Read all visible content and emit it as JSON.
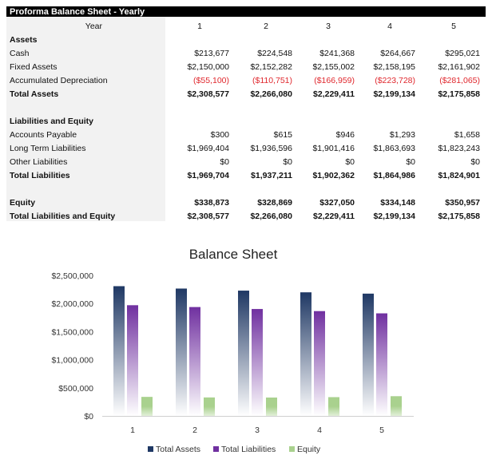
{
  "sheet": {
    "title": "Proforma Balance Sheet - Yearly",
    "year_label": "Year",
    "years": [
      "1",
      "2",
      "3",
      "4",
      "5"
    ],
    "rows": [
      {
        "label": "Assets",
        "bold": true,
        "values": []
      },
      {
        "label": "Cash",
        "values": [
          "$213,677",
          "$224,548",
          "$241,368",
          "$264,667",
          "$295,021"
        ]
      },
      {
        "label": "Fixed Assets",
        "values": [
          "$2,150,000",
          "$2,152,282",
          "$2,155,002",
          "$2,158,195",
          "$2,161,902"
        ]
      },
      {
        "label": "Accumulated Depreciation",
        "negative": true,
        "values": [
          "($55,100)",
          "($110,751)",
          "($166,959)",
          "($223,728)",
          "($281,065)"
        ]
      },
      {
        "label": "Total Assets",
        "bold": true,
        "values": [
          "$2,308,577",
          "$2,266,080",
          "$2,229,411",
          "$2,199,134",
          "$2,175,858"
        ]
      },
      {
        "label": "",
        "values": []
      },
      {
        "label": "Liabilities and Equity",
        "bold": true,
        "values": []
      },
      {
        "label": "Accounts Payable",
        "values": [
          "$300",
          "$615",
          "$946",
          "$1,293",
          "$1,658"
        ]
      },
      {
        "label": "Long Term Liabilities",
        "values": [
          "$1,969,404",
          "$1,936,596",
          "$1,901,416",
          "$1,863,693",
          "$1,823,243"
        ]
      },
      {
        "label": "Other Liabilities",
        "values": [
          "$0",
          "$0",
          "$0",
          "$0",
          "$0"
        ]
      },
      {
        "label": "Total Liabilities",
        "bold": true,
        "values": [
          "$1,969,704",
          "$1,937,211",
          "$1,902,362",
          "$1,864,986",
          "$1,824,901"
        ]
      },
      {
        "label": "",
        "values": []
      },
      {
        "label": "Equity",
        "bold": true,
        "values": [
          "$338,873",
          "$328,869",
          "$327,050",
          "$334,148",
          "$350,957"
        ]
      },
      {
        "label": "Total Liabilities and Equity",
        "bold": true,
        "values": [
          "$2,308,577",
          "$2,266,080",
          "$2,229,411",
          "$2,199,134",
          "$2,175,858"
        ]
      }
    ]
  },
  "chart_data": {
    "type": "bar",
    "title": "Balance Sheet",
    "categories": [
      "1",
      "2",
      "3",
      "4",
      "5"
    ],
    "series": [
      {
        "name": "Total Assets",
        "color": "#1f3864",
        "values": [
          2308577,
          2266080,
          2229411,
          2199134,
          2175858
        ]
      },
      {
        "name": "Total Liabilities",
        "color": "#7030a0",
        "values": [
          1969704,
          1937211,
          1902362,
          1864986,
          1824901
        ]
      },
      {
        "name": "Equity",
        "color": "#a9d18e",
        "values": [
          338873,
          328869,
          327050,
          334148,
          350957
        ]
      }
    ],
    "ylim": [
      0,
      2500000
    ],
    "yticks": [
      "$0",
      "$500,000",
      "$1,000,000",
      "$1,500,000",
      "$2,000,000",
      "$2,500,000"
    ],
    "grid": false,
    "legend": "bottom"
  }
}
